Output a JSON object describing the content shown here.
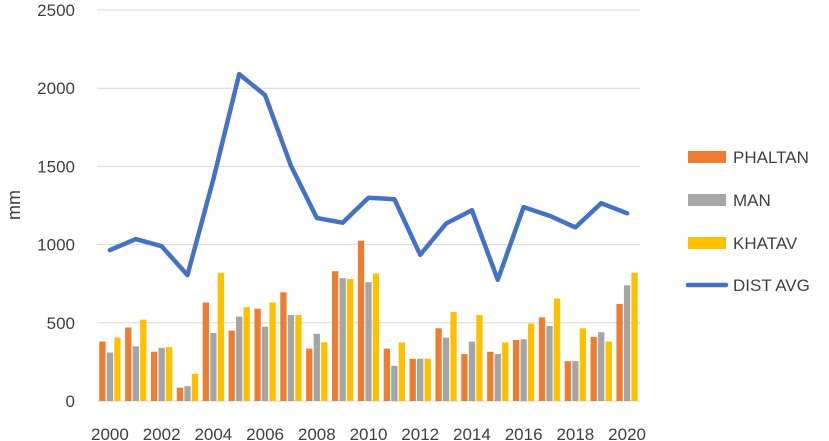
{
  "chart_data": {
    "type": "bar+line",
    "ylabel": "mm",
    "ylim": [
      0,
      2500
    ],
    "yticks": [
      0,
      500,
      1000,
      1500,
      2000,
      2500
    ],
    "grid": true,
    "legend_position": "right",
    "categories": [
      2000,
      2001,
      2002,
      2003,
      2004,
      2005,
      2006,
      2007,
      2008,
      2009,
      2010,
      2011,
      2012,
      2013,
      2014,
      2015,
      2016,
      2017,
      2018,
      2019,
      2020
    ],
    "xtick_labels": [
      "2000",
      "2002",
      "2004",
      "2006",
      "2008",
      "2010",
      "2012",
      "2014",
      "2016",
      "2018",
      "2020"
    ],
    "series": [
      {
        "name": "PHALTAN",
        "type": "bar",
        "color": "#ED7D31",
        "values": [
          380,
          470,
          315,
          85,
          630,
          450,
          590,
          695,
          335,
          830,
          1025,
          335,
          270,
          465,
          300,
          315,
          390,
          535,
          255,
          410,
          620
        ]
      },
      {
        "name": "MAN",
        "type": "bar",
        "color": "#A5A5A5",
        "values": [
          310,
          350,
          340,
          95,
          435,
          540,
          475,
          550,
          430,
          785,
          760,
          225,
          270,
          405,
          380,
          300,
          395,
          480,
          255,
          440,
          740
        ]
      },
      {
        "name": "KHATAV",
        "type": "bar",
        "color": "#FFC000",
        "values": [
          405,
          520,
          345,
          175,
          820,
          600,
          630,
          550,
          375,
          780,
          815,
          375,
          270,
          570,
          550,
          375,
          495,
          655,
          465,
          380,
          820
        ]
      },
      {
        "name": "DIST AVG",
        "type": "line",
        "color": "#4472C4",
        "values": [
          965,
          1035,
          990,
          805,
          1420,
          2090,
          1955,
          1505,
          1170,
          1140,
          1300,
          1290,
          935,
          1135,
          1220,
          775,
          1240,
          1185,
          1110,
          1265,
          1200
        ]
      }
    ]
  }
}
